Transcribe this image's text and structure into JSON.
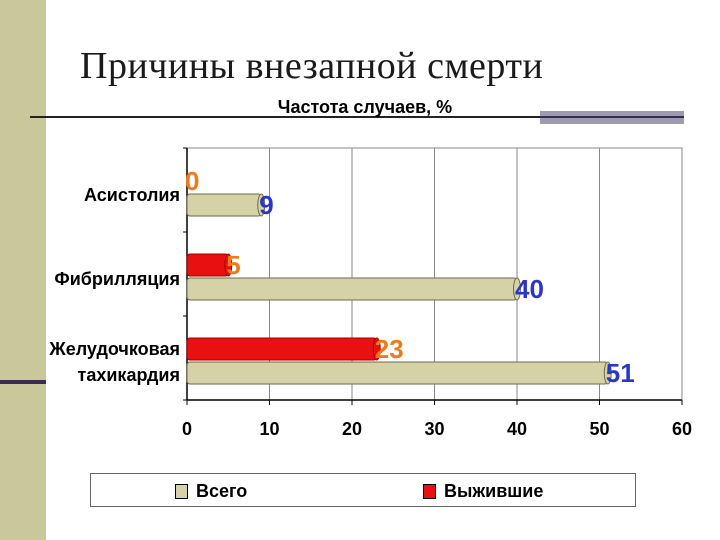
{
  "slide": {
    "title": "Причины внезапной смерти"
  },
  "colors": {
    "side_bar": "#c9c89a",
    "accent": "#3b2a52",
    "series_total": "#d6d2a8",
    "series_survived": "#e81010",
    "label_total": "#2a36c8",
    "label_survived": "#ee7a1a"
  },
  "chart_data": {
    "type": "bar",
    "orientation": "horizontal",
    "title": "Частота случаев, %",
    "categories": [
      "Асистолия",
      "Фибрилляция",
      "Желудочковая тахикардия"
    ],
    "series": [
      {
        "name": "Всего",
        "values": [
          9,
          40,
          51
        ]
      },
      {
        "name": "Выжившие",
        "values": [
          0,
          5,
          23
        ]
      }
    ],
    "xlim": [
      0,
      60
    ],
    "x_ticks": [
      0,
      10,
      20,
      30,
      40,
      50,
      60
    ],
    "grid": true,
    "legend_position": "bottom",
    "data_labels": true
  }
}
